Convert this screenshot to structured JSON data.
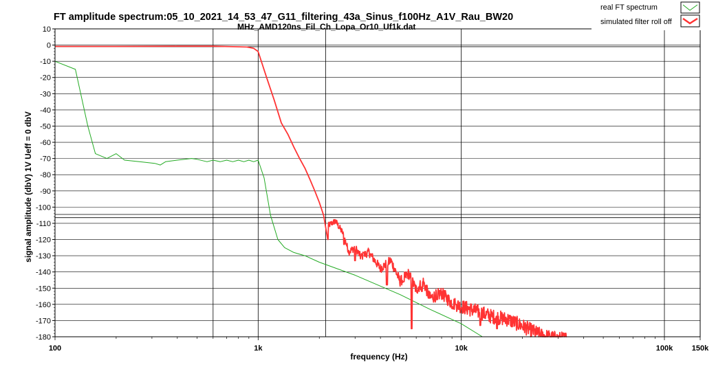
{
  "chart_data": {
    "type": "line",
    "title": "FT amplitude spectrum:05_10_2021_14_53_47_G11_filtering_43a_Sinus_f100Hz_A1V_Rau_BW20",
    "subtitle": "MHz_AMD120ns_Fil_Ch_Lopa_Or10_Uf1k.dat",
    "xlabel": "frequency (Hz)",
    "ylabel": "signal amplitude (dbV)   1V Ueff = 0 dbV",
    "x_scale": "log",
    "xlim": [
      100,
      150000
    ],
    "ylim": [
      -180,
      10
    ],
    "x_ticks": [
      {
        "value": 100,
        "label": "100"
      },
      {
        "value": 1000,
        "label": "1k"
      },
      {
        "value": 10000,
        "label": "10k"
      },
      {
        "value": 100000,
        "label": "100k"
      },
      {
        "value": 150000,
        "label": "150k"
      }
    ],
    "y_ticks": [
      10,
      0,
      -10,
      -20,
      -30,
      -40,
      -50,
      -60,
      -70,
      -80,
      -90,
      -100,
      -110,
      -120,
      -130,
      -140,
      -150,
      -160,
      -170,
      -180
    ],
    "y_tick_labels": [
      "10",
      "0",
      "-10",
      "-20",
      "-30",
      "-40",
      "-50",
      "-60",
      "-70",
      "-80",
      "-90",
      "-100",
      "-110",
      "-120",
      "-130",
      "-140",
      "-150",
      "-160",
      "-170",
      "-180"
    ],
    "vlines": [
      600,
      2150
    ],
    "hlines": [
      -1,
      -104.5,
      -106.5
    ],
    "grid": true,
    "legend_position": "top-right",
    "series": [
      {
        "name": "real FT spectrum",
        "color": "#22aa22",
        "points": [
          [
            100,
            -10
          ],
          [
            126,
            -15
          ],
          [
            145,
            -50
          ],
          [
            158,
            -67
          ],
          [
            180,
            -70
          ],
          [
            200,
            -67
          ],
          [
            220,
            -71
          ],
          [
            260,
            -72
          ],
          [
            310,
            -73
          ],
          [
            330,
            -74
          ],
          [
            350,
            -72
          ],
          [
            400,
            -71
          ],
          [
            470,
            -70
          ],
          [
            500,
            -70.5
          ],
          [
            560,
            -72
          ],
          [
            600,
            -71
          ],
          [
            650,
            -72
          ],
          [
            700,
            -71
          ],
          [
            750,
            -72
          ],
          [
            800,
            -71
          ],
          [
            850,
            -72
          ],
          [
            900,
            -71
          ],
          [
            950,
            -72
          ],
          [
            1000,
            -71
          ],
          [
            1070,
            -82
          ],
          [
            1150,
            -105
          ],
          [
            1250,
            -120
          ],
          [
            1350,
            -125
          ],
          [
            1500,
            -128
          ],
          [
            1700,
            -130
          ],
          [
            2000,
            -134
          ],
          [
            3000,
            -142
          ],
          [
            5000,
            -154
          ],
          [
            7000,
            -163
          ],
          [
            10000,
            -172
          ],
          [
            12700,
            -180
          ]
        ]
      },
      {
        "name": "simulated filter roll off",
        "color": "#ff3333",
        "points": [
          [
            100,
            -0.8
          ],
          [
            200,
            -0.8
          ],
          [
            400,
            -0.7
          ],
          [
            600,
            -0.7
          ],
          [
            750,
            -1
          ],
          [
            880,
            -1.2
          ],
          [
            950,
            -2
          ],
          [
            1000,
            -4
          ],
          [
            1100,
            -20
          ],
          [
            1200,
            -34
          ],
          [
            1300,
            -48
          ],
          [
            1400,
            -55
          ],
          [
            1500,
            -63
          ],
          [
            1600,
            -70
          ],
          [
            1700,
            -76
          ],
          [
            1800,
            -83
          ],
          [
            1900,
            -90
          ],
          [
            2000,
            -97
          ],
          [
            2100,
            -105
          ],
          [
            2200,
            -111
          ],
          [
            2400,
            -108
          ],
          [
            2600,
            -115
          ],
          [
            2800,
            -127
          ],
          [
            3000,
            -124
          ],
          [
            3200,
            -130
          ],
          [
            3500,
            -127
          ],
          [
            4000,
            -137
          ],
          [
            4500,
            -132
          ],
          [
            5000,
            -145
          ],
          [
            5500,
            -140
          ],
          [
            6000,
            -150
          ],
          [
            6500,
            -145
          ],
          [
            7000,
            -155
          ],
          [
            8000,
            -152
          ],
          [
            9000,
            -158
          ],
          [
            10000,
            -160
          ],
          [
            12000,
            -163
          ],
          [
            14000,
            -166
          ],
          [
            17000,
            -168
          ],
          [
            20000,
            -172
          ],
          [
            25000,
            -178
          ],
          [
            30000,
            -180
          ]
        ],
        "noise_ranges": [
          {
            "from": 2200,
            "to": 33000,
            "amplitude_db": 9
          }
        ],
        "spikes": [
          [
            2200,
            -120
          ],
          [
            2650,
            -123
          ],
          [
            3000,
            -133
          ],
          [
            3300,
            -128
          ],
          [
            4300,
            -148
          ],
          [
            5200,
            -146
          ],
          [
            5700,
            -175
          ],
          [
            6400,
            -152
          ],
          [
            7600,
            -157
          ],
          [
            9400,
            -160
          ],
          [
            12400,
            -173
          ],
          [
            15000,
            -175
          ]
        ]
      }
    ]
  }
}
